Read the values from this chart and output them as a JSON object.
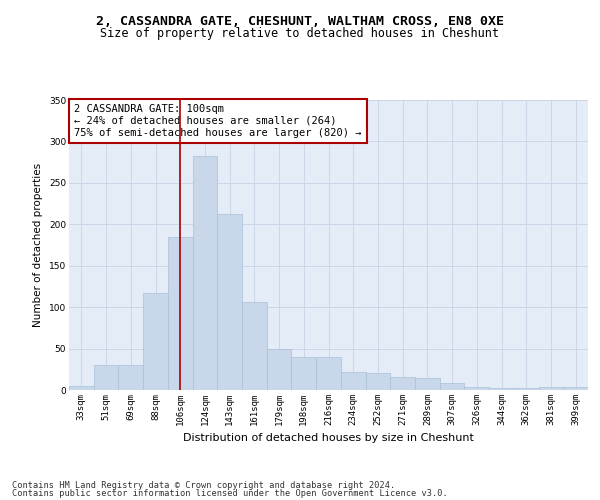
{
  "title1": "2, CASSANDRA GATE, CHESHUNT, WALTHAM CROSS, EN8 0XE",
  "title2": "Size of property relative to detached houses in Cheshunt",
  "xlabel": "Distribution of detached houses by size in Cheshunt",
  "ylabel": "Number of detached properties",
  "categories": [
    "33sqm",
    "51sqm",
    "69sqm",
    "88sqm",
    "106sqm",
    "124sqm",
    "143sqm",
    "161sqm",
    "179sqm",
    "198sqm",
    "216sqm",
    "234sqm",
    "252sqm",
    "271sqm",
    "289sqm",
    "307sqm",
    "326sqm",
    "344sqm",
    "362sqm",
    "381sqm",
    "399sqm"
  ],
  "values": [
    5,
    30,
    30,
    117,
    185,
    283,
    213,
    106,
    50,
    40,
    40,
    22,
    20,
    16,
    15,
    9,
    4,
    2,
    2,
    4,
    4
  ],
  "bar_color": "#c8d8ea",
  "bar_edge_color": "#a8c0d4",
  "vline_x_index": 4,
  "vline_color": "#aa0000",
  "annotation_text": "2 CASSANDRA GATE: 100sqm\n← 24% of detached houses are smaller (264)\n75% of semi-detached houses are larger (820) →",
  "annotation_box_color": "#ffffff",
  "annotation_box_edge": "#aa0000",
  "ylim": [
    0,
    350
  ],
  "yticks": [
    0,
    50,
    100,
    150,
    200,
    250,
    300,
    350
  ],
  "grid_color": "#ccd6e8",
  "background_color": "#e4ecf8",
  "footnote1": "Contains HM Land Registry data © Crown copyright and database right 2024.",
  "footnote2": "Contains public sector information licensed under the Open Government Licence v3.0.",
  "title1_fontsize": 9.5,
  "title2_fontsize": 8.5,
  "xlabel_fontsize": 8,
  "ylabel_fontsize": 7.5,
  "tick_fontsize": 6.5,
  "annot_fontsize": 7.5,
  "footnote_fontsize": 6.2
}
